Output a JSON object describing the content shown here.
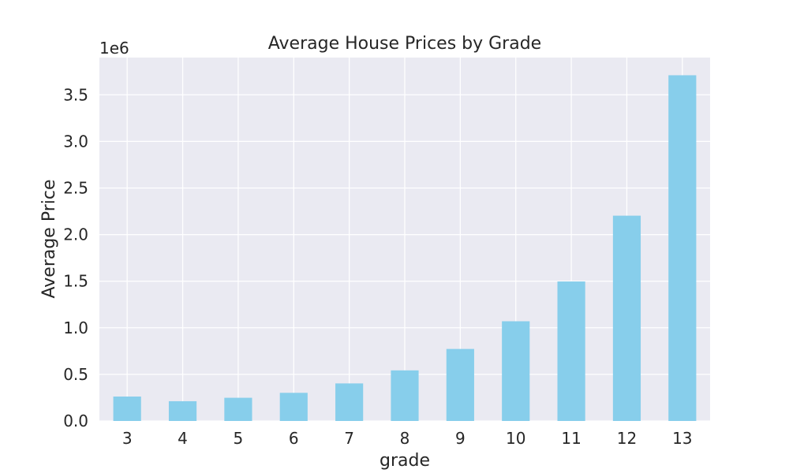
{
  "chart_data": {
    "type": "bar",
    "title": "Average House Prices by Grade",
    "xlabel": "grade",
    "ylabel": "Average Price",
    "y_offset_label": "1e6",
    "categories": [
      "3",
      "4",
      "5",
      "6",
      "7",
      "8",
      "9",
      "10",
      "11",
      "12",
      "13"
    ],
    "values": [
      262000,
      212000,
      249000,
      302000,
      403000,
      543000,
      773000,
      1070000,
      1497000,
      2203000,
      3710000
    ],
    "ylim": [
      0,
      3900000
    ],
    "y_ticks": [
      0,
      500000,
      1000000,
      1500000,
      2000000,
      2500000,
      3000000,
      3500000
    ],
    "y_tick_labels": [
      "0.0",
      "0.5",
      "1.0",
      "1.5",
      "2.0",
      "2.5",
      "3.0",
      "3.5"
    ],
    "grid": true,
    "legend": "none",
    "colors": {
      "bar": "#87ceeb",
      "background": "#eaeaf2",
      "grid": "#ffffff"
    }
  }
}
